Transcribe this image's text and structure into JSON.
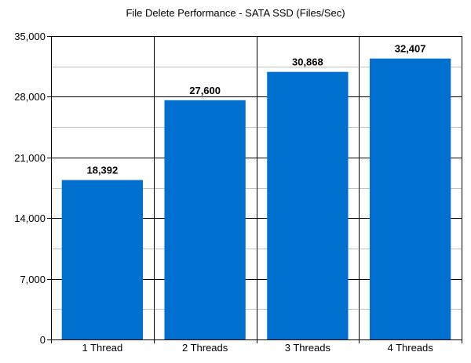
{
  "chart_data": {
    "type": "bar",
    "title": "File Delete Performance - SATA SSD (Files/Sec)",
    "categories": [
      "1 Thread",
      "2 Threads",
      "3 Threads",
      "4 Threads"
    ],
    "values": [
      18392,
      27600,
      30868,
      32407
    ],
    "data_labels": [
      "18,392",
      "27,600",
      "30,868",
      "32,407"
    ],
    "ylim": [
      0,
      35000
    ],
    "yticks": [
      0,
      7000,
      14000,
      21000,
      28000,
      35000
    ],
    "ytick_labels": [
      "0",
      "7,000",
      "14,000",
      "21,000",
      "28,000",
      "35,000"
    ],
    "minor_step": 3500,
    "grid": true,
    "legend": "none",
    "colors": {
      "bar": "#0070d0",
      "major_grid": "#000000",
      "minor_grid": "#c0c0c0",
      "axis": "#000000"
    }
  }
}
